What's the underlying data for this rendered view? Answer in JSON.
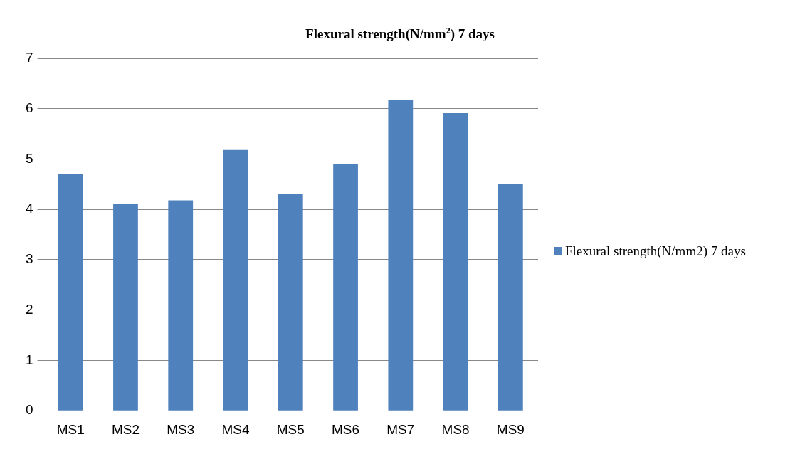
{
  "chart_data": {
    "type": "bar",
    "title": "Flexural strength(N/mm$^{2}$) 7 days",
    "categories": [
      "MS1",
      "MS2",
      "MS3",
      "MS4",
      "MS5",
      "MS6",
      "MS7",
      "MS8",
      "MS9"
    ],
    "series": [
      {
        "name": "Flexural strength(N/mm2) 7 days",
        "color": "#4f81bd",
        "values": [
          4.71,
          4.11,
          4.18,
          5.18,
          4.31,
          4.9,
          6.18,
          5.91,
          4.51
        ]
      }
    ],
    "ylim": [
      0,
      7
    ],
    "yticks": [
      0,
      1,
      2,
      3,
      4,
      5,
      6,
      7
    ],
    "grid": "y",
    "legend": "right"
  }
}
